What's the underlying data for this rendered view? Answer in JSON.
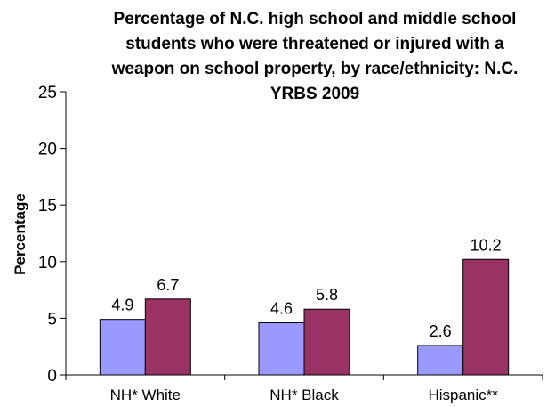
{
  "chart_data": {
    "type": "bar",
    "title_lines": [
      "Percentage of N.C. high school and middle school",
      "students who were threatened or injured with a",
      "weapon on school property, by race/ethnicity: N.C.",
      "YRBS 2009"
    ],
    "xlabel": "",
    "ylabel": "Percentage",
    "ylim": [
      0,
      25
    ],
    "yticks": [
      "0",
      "5",
      "10",
      "15",
      "20",
      "25"
    ],
    "categories": [
      "NH* White",
      "NH* Black",
      "Hispanic**"
    ],
    "series": [
      {
        "color": "#9999ff",
        "values": [
          4.9,
          4.6,
          2.6
        ],
        "labels": [
          "4.9",
          "4.6",
          "2.6"
        ]
      },
      {
        "color": "#993366",
        "values": [
          6.7,
          5.8,
          10.2
        ],
        "labels": [
          "6.7",
          "5.8",
          "10.2"
        ]
      }
    ],
    "grid": false,
    "legend": "none"
  }
}
